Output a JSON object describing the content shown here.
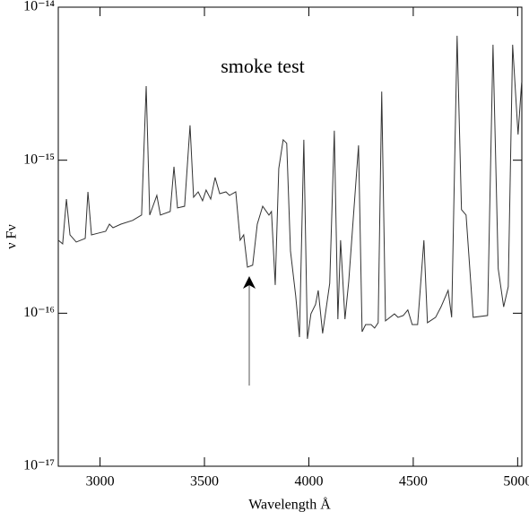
{
  "chart_data": {
    "type": "line",
    "title": "smoke test",
    "x_label": "Wavelength Å",
    "y_label": "ν Fν",
    "log_y": true,
    "xlim": [
      2800,
      5020
    ],
    "xticks": [
      3000,
      3500,
      4000,
      4500,
      5000
    ],
    "ylim": [
      1e-17,
      1e-14
    ],
    "yticks": [
      {
        "value": 1e-17,
        "label": "10⁻¹⁷"
      },
      {
        "value": 1e-16,
        "label": "10⁻¹⁶"
      },
      {
        "value": 1e-15,
        "label": "10⁻¹⁵"
      },
      {
        "value": 1e-14,
        "label": "10⁻¹⁴"
      }
    ],
    "series": [
      {
        "color": "#333333",
        "x": [
          2800,
          2821,
          2839,
          2856,
          2886,
          2929,
          2942,
          2959,
          2993,
          3027,
          3045,
          3062,
          3100,
          3156,
          3199,
          3221,
          3238,
          3272,
          3289,
          3336,
          3354,
          3371,
          3405,
          3431,
          3448,
          3470,
          3491,
          3508,
          3530,
          3551,
          3573,
          3603,
          3620,
          3650,
          3671,
          3688,
          3706,
          3731,
          3753,
          3779,
          3809,
          3821,
          3839,
          3856,
          3877,
          3894,
          3912,
          3937,
          3955,
          3976,
          3993,
          4010,
          4032,
          4045,
          4066,
          4100,
          4122,
          4139,
          4152,
          4173,
          4191,
          4238,
          4255,
          4272,
          4298,
          4315,
          4332,
          4349,
          4367,
          4410,
          4427,
          4452,
          4474,
          4495,
          4521,
          4551,
          4568,
          4607,
          4633,
          4667,
          4684,
          4710,
          4731,
          4753,
          4787,
          4856,
          4882,
          4907,
          4933,
          4955,
          4976,
          5002,
          5019
        ],
        "values": [
          3e-16,
          2.84e-16,
          5.57e-16,
          3.25e-16,
          2.92e-16,
          3.08e-16,
          6.21e-16,
          3.25e-16,
          3.34e-16,
          3.43e-16,
          3.82e-16,
          3.62e-16,
          3.82e-16,
          4.04e-16,
          4.38e-16,
          3.05e-15,
          4.38e-16,
          5.89e-16,
          4.38e-16,
          4.62e-16,
          9.06e-16,
          4.88e-16,
          5e-16,
          1.69e-15,
          5.73e-16,
          6.21e-16,
          5.43e-16,
          6.38e-16,
          5.57e-16,
          7.71e-16,
          6.04e-16,
          6.21e-16,
          5.89e-16,
          6.21e-16,
          3e-16,
          3.25e-16,
          2e-16,
          2.06e-16,
          3.82e-16,
          5e-16,
          4.38e-16,
          4.62e-16,
          1.53e-16,
          8.83e-16,
          1.36e-15,
          1.29e-15,
          2.55e-16,
          1.3e-16,
          6.98e-17,
          1.36e-15,
          6.8e-17,
          9.9e-17,
          1.14e-16,
          1.41e-16,
          7.38e-17,
          1.57e-16,
          1.56e-15,
          9.14e-17,
          3e-16,
          9.14e-17,
          1.61e-16,
          1.25e-15,
          7.57e-17,
          8.43e-17,
          8.43e-17,
          8e-17,
          8.67e-17,
          2.81e-15,
          8.91e-17,
          9.9e-17,
          9.4e-17,
          9.66e-17,
          1.05e-16,
          8.43e-17,
          8.43e-17,
          3e-16,
          8.67e-17,
          9.4e-17,
          1.1e-16,
          1.41e-16,
          9.4e-17,
          6.5e-15,
          4.75e-16,
          4.38e-16,
          9.4e-17,
          9.66e-17,
          5.68e-15,
          1.95e-16,
          1.1e-16,
          1.49e-16,
          5.68e-15,
          1.47e-15,
          3.22e-15
        ]
      }
    ]
  }
}
